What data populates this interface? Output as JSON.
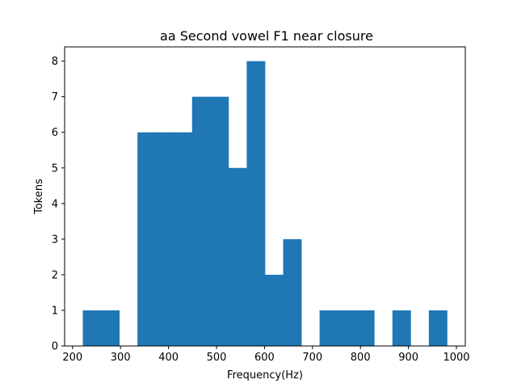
{
  "chart_data": {
    "type": "histogram",
    "title": "aa Second vowel F1 near closure",
    "xlabel": "Frequency(Hz)",
    "ylabel": "Tokens",
    "xlim": [
      183.5,
      1018.5
    ],
    "ylim": [
      0,
      8.4
    ],
    "xticks": [
      200,
      300,
      400,
      500,
      600,
      700,
      800,
      900,
      1000
    ],
    "yticks": [
      0,
      1,
      2,
      3,
      4,
      5,
      6,
      7,
      8
    ],
    "bar_color": "#1f77b4",
    "bins": [
      {
        "x0": 221.4,
        "x1": 259.4,
        "count": 1
      },
      {
        "x0": 259.4,
        "x1": 297.3,
        "count": 1
      },
      {
        "x0": 297.3,
        "x1": 335.3,
        "count": 0
      },
      {
        "x0": 335.3,
        "x1": 373.2,
        "count": 6
      },
      {
        "x0": 373.2,
        "x1": 411.2,
        "count": 6
      },
      {
        "x0": 411.2,
        "x1": 449.1,
        "count": 6
      },
      {
        "x0": 449.1,
        "x1": 487.1,
        "count": 7
      },
      {
        "x0": 487.1,
        "x1": 525.0,
        "count": 7
      },
      {
        "x0": 525.0,
        "x1": 563.0,
        "count": 5
      },
      {
        "x0": 563.0,
        "x1": 600.9,
        "count": 8
      },
      {
        "x0": 600.9,
        "x1": 638.9,
        "count": 2
      },
      {
        "x0": 638.9,
        "x1": 676.8,
        "count": 3
      },
      {
        "x0": 676.8,
        "x1": 714.8,
        "count": 0
      },
      {
        "x0": 714.8,
        "x1": 752.7,
        "count": 1
      },
      {
        "x0": 752.7,
        "x1": 790.7,
        "count": 1
      },
      {
        "x0": 790.7,
        "x1": 828.6,
        "count": 1
      },
      {
        "x0": 828.6,
        "x1": 866.6,
        "count": 0
      },
      {
        "x0": 866.6,
        "x1": 904.5,
        "count": 1
      },
      {
        "x0": 904.5,
        "x1": 942.5,
        "count": 0
      },
      {
        "x0": 942.5,
        "x1": 980.4,
        "count": 1
      }
    ]
  }
}
